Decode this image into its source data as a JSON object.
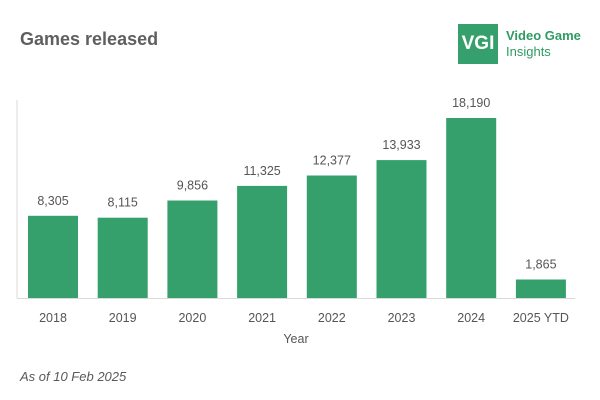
{
  "header": {
    "title": "Games released"
  },
  "brand": {
    "logo_text": "VGI",
    "name_line1": "Video Game",
    "name_line2": "Insights",
    "color": "#35a06c"
  },
  "footnote": "As of 10 Feb 2025",
  "chart_data": {
    "type": "bar",
    "title": "Games released",
    "xlabel": "Year",
    "ylabel": "",
    "categories": [
      "2018",
      "2019",
      "2020",
      "2021",
      "2022",
      "2023",
      "2024",
      "2025 YTD"
    ],
    "values": [
      8305,
      8115,
      9856,
      11325,
      12377,
      13933,
      18190,
      1865
    ],
    "value_labels": [
      "8,305",
      "8,115",
      "9,856",
      "11,325",
      "12,377",
      "13,933",
      "18,190",
      "1,865"
    ],
    "ylim": [
      0,
      18190
    ],
    "bar_color": "#35a06c",
    "grid": false,
    "legend": "none"
  }
}
